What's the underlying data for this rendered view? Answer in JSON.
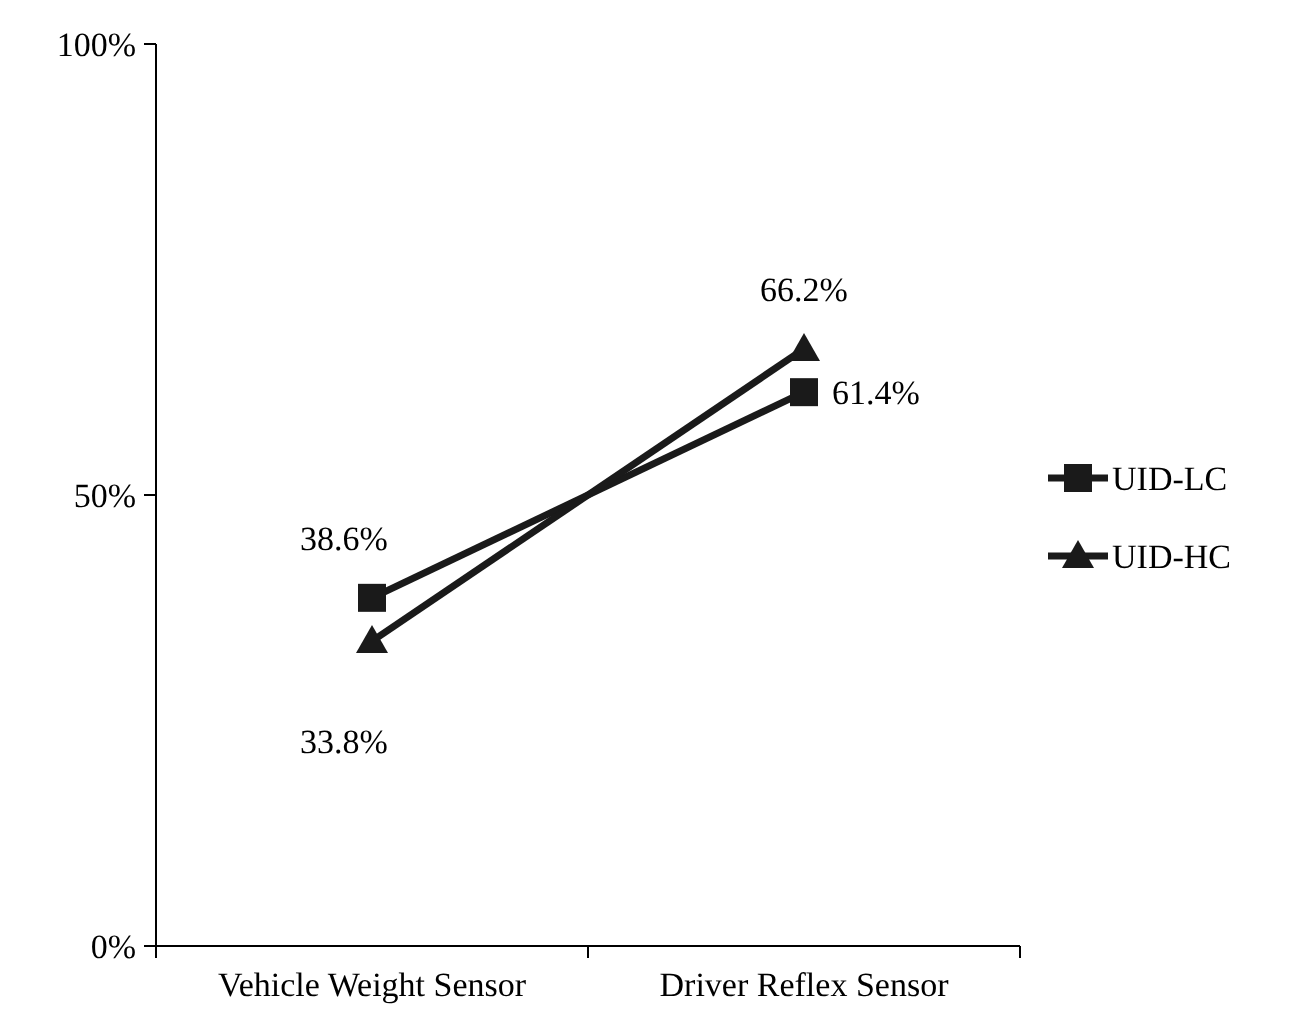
{
  "chart_data": {
    "type": "line",
    "categories": [
      "Vehicle Weight Sensor",
      "Driver Reflex Sensor"
    ],
    "series": [
      {
        "name": "UID-LC",
        "color": "#1a1a1a",
        "values": [
          38.6,
          61.4
        ],
        "value_labels": [
          "38.6%",
          "61.4%"
        ],
        "marker": "square"
      },
      {
        "name": "UID-HC",
        "color": "#1a1a1a",
        "values": [
          33.8,
          66.2
        ],
        "value_labels": [
          "33.8%",
          "66.2%"
        ],
        "marker": "triangle"
      }
    ],
    "ylim": [
      0,
      100
    ],
    "yticks": [
      {
        "value": 0,
        "label": "0%"
      },
      {
        "value": 50,
        "label": "50%"
      },
      {
        "value": 100,
        "label": "100%"
      }
    ],
    "legend": "right",
    "grid": false
  }
}
